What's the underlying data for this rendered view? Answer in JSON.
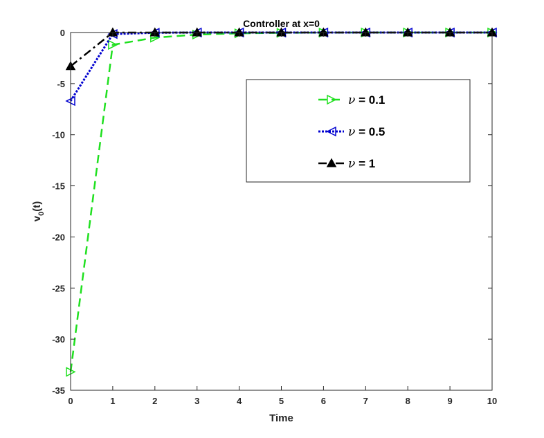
{
  "chart_data": {
    "type": "line",
    "title": "Controller at x=0",
    "xlabel": "Time",
    "ylabel": "v",
    "ylabel_sub": "0",
    "ylabel_tail": "(t)",
    "xlim": [
      0,
      10
    ],
    "ylim": [
      -35,
      0
    ],
    "xticks": [
      0,
      1,
      2,
      3,
      4,
      5,
      6,
      7,
      8,
      9,
      10
    ],
    "yticks": [
      0,
      -5,
      -10,
      -15,
      -20,
      -25,
      -30,
      -35
    ],
    "grid": false,
    "legend_position": "upper-right",
    "series": [
      {
        "name": "ν = 0.1",
        "name_symbol": "ν",
        "name_rest": " = 0.1",
        "color": "#1fe01f",
        "line_style": "dashed",
        "marker": "triangle-right",
        "x": [
          0,
          1,
          2,
          3,
          4,
          5,
          6,
          7,
          8,
          9,
          10
        ],
        "values": [
          -33.2,
          -1.2,
          -0.5,
          -0.2,
          -0.08,
          -0.03,
          -0.01,
          0,
          0,
          0,
          0
        ]
      },
      {
        "name": "ν = 0.5",
        "name_symbol": "ν",
        "name_rest": " = 0.5",
        "color": "#0000d0",
        "line_style": "dotted",
        "marker": "triangle-left",
        "x": [
          0,
          1,
          2,
          3,
          4,
          5,
          6,
          7,
          8,
          9,
          10
        ],
        "values": [
          -6.7,
          -0.15,
          -0.02,
          0,
          0,
          0,
          0,
          0,
          0,
          0,
          0
        ]
      },
      {
        "name": "ν = 1",
        "name_symbol": "ν",
        "name_rest": " = 1",
        "color": "#000000",
        "line_style": "dashdot",
        "marker": "triangle-up",
        "x": [
          0,
          1,
          2,
          3,
          4,
          5,
          6,
          7,
          8,
          9,
          10
        ],
        "values": [
          -3.3,
          0,
          0,
          0,
          0,
          0,
          0,
          0,
          0,
          0,
          0
        ]
      }
    ]
  }
}
